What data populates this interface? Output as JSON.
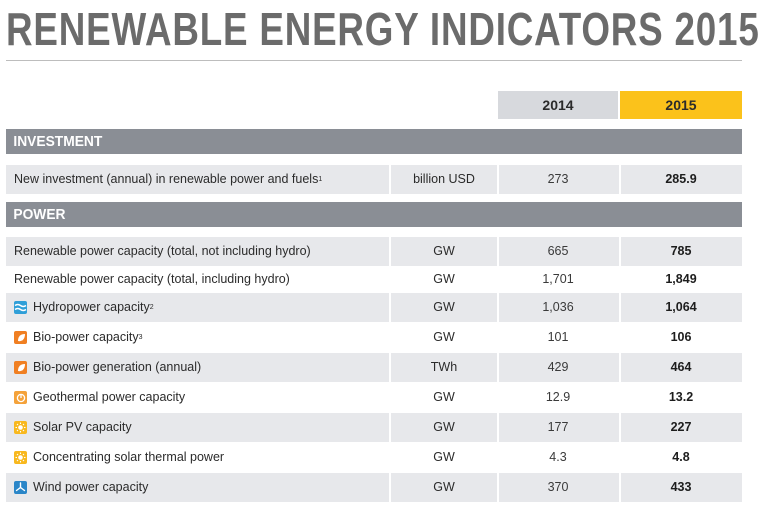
{
  "title": "RENEWABLE ENERGY INDICATORS 2015",
  "years": [
    "2014",
    "2015"
  ],
  "colors": {
    "title": "#6b6b6b",
    "section_bg": "#8a8e95",
    "year_2014_bg": "#d7d9dd",
    "year_2015_bg": "#fbc21b",
    "row_shade": "#e7e8eb",
    "hydro_icon": "#2f9fd8",
    "bio_icon": "#f07f22",
    "geo_icon": "#f4a23a",
    "solar_icon": "#f8b81e",
    "wind_icon": "#2a86c8"
  },
  "sections": [
    {
      "name": "INVESTMENT",
      "rows": [
        {
          "label": "New investment (annual) in renewable power and fuels",
          "sup": "1",
          "unit": "billion USD",
          "v2014": "273",
          "v2015": "285.9",
          "icon": ""
        }
      ]
    },
    {
      "name": "POWER",
      "rows": [
        {
          "label": "Renewable power capacity (total, not including hydro)",
          "sup": "",
          "unit": "GW",
          "v2014": "665",
          "v2015": "785",
          "icon": ""
        },
        {
          "label": "Renewable power capacity (total, including hydro)",
          "sup": "",
          "unit": "GW",
          "v2014": "1,701",
          "v2015": "1,849",
          "icon": ""
        },
        {
          "label": "Hydropower capacity",
          "sup": "2",
          "unit": "GW",
          "v2014": "1,036",
          "v2015": "1,064",
          "icon": "hydro-icon"
        },
        {
          "label": "Bio-power capacity",
          "sup": "3",
          "unit": "GW",
          "v2014": "101",
          "v2015": "106",
          "icon": "bio-icon"
        },
        {
          "label": "Bio-power generation (annual)",
          "sup": "",
          "unit": "TWh",
          "v2014": "429",
          "v2015": "464",
          "icon": "bio-icon"
        },
        {
          "label": "Geothermal power capacity",
          "sup": "",
          "unit": "GW",
          "v2014": "12.9",
          "v2015": "13.2",
          "icon": "geothermal-icon"
        },
        {
          "label": "Solar PV capacity",
          "sup": "",
          "unit": "GW",
          "v2014": "177",
          "v2015": "227",
          "icon": "solar-icon"
        },
        {
          "label": "Concentrating solar thermal power",
          "sup": "",
          "unit": "GW",
          "v2014": "4.3",
          "v2015": "4.8",
          "icon": "solar-icon"
        },
        {
          "label": "Wind power capacity",
          "sup": "",
          "unit": "GW",
          "v2014": "370",
          "v2015": "433",
          "icon": "wind-icon"
        }
      ]
    }
  ]
}
